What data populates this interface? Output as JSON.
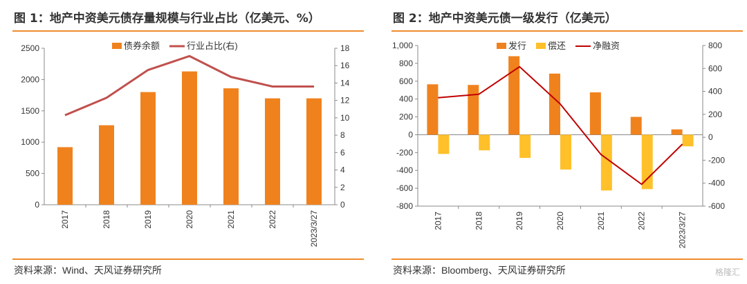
{
  "left": {
    "title": "图 1：地产中资美元债存量规模与行业占比（亿美元、%）",
    "source": "资料来源：Wind、天风证券研究所"
  },
  "right": {
    "title": "图 2：地产中资美元债一级发行（亿美元）",
    "source": "资料来源：Bloomberg、天风证券研究所"
  },
  "watermark": "格隆汇",
  "colors": {
    "orange": "#f0821e",
    "yellow": "#ffc02a",
    "line_left": "#c0504d",
    "line_right": "#c00000",
    "accent": "#f08a2c"
  },
  "chart_data": [
    {
      "type": "bar",
      "categories": [
        "2017",
        "2018",
        "2019",
        "2020",
        "2021",
        "2022",
        "2023/3/27"
      ],
      "series": [
        {
          "name": "债券余额",
          "kind": "bar",
          "axis": "left",
          "values": [
            920,
            1270,
            1800,
            2130,
            1860,
            1700,
            1700
          ]
        },
        {
          "name": "行业占比(右)",
          "kind": "line",
          "axis": "right",
          "values": [
            10.3,
            12.3,
            15.5,
            17.1,
            14.7,
            13.6,
            13.6
          ]
        }
      ],
      "y_left": {
        "min": 0,
        "max": 2500,
        "ticks": [
          "0",
          "500",
          "1000",
          "1500",
          "2000",
          "2500"
        ]
      },
      "y_right": {
        "min": 0,
        "max": 18,
        "ticks": [
          "0",
          "2",
          "4",
          "6",
          "8",
          "10",
          "12",
          "14",
          "16",
          "18"
        ]
      },
      "legend": "top"
    },
    {
      "type": "bar",
      "categories": [
        "2017",
        "2018",
        "2019",
        "2020",
        "2021",
        "2022",
        "2023/3/27"
      ],
      "series": [
        {
          "name": "发行",
          "kind": "bar",
          "axis": "left",
          "values": [
            565,
            558,
            880,
            685,
            475,
            200,
            60
          ]
        },
        {
          "name": "偿还",
          "kind": "bar",
          "axis": "left",
          "values": [
            -215,
            -175,
            -260,
            -390,
            -625,
            -610,
            -130
          ]
        },
        {
          "name": "净融资",
          "kind": "line",
          "axis": "right",
          "values": [
            345,
            375,
            615,
            290,
            -150,
            -410,
            -60
          ]
        }
      ],
      "y_left": {
        "min": -800,
        "max": 1000,
        "ticks": [
          "-800",
          "-600",
          "-400",
          "-200",
          "0",
          "200",
          "400",
          "600",
          "800",
          "1,000"
        ]
      },
      "y_right": {
        "min": -600,
        "max": 800,
        "ticks": [
          "-600",
          "-400",
          "-200",
          "0",
          "200",
          "400",
          "600",
          "800"
        ]
      },
      "legend": "top"
    }
  ]
}
